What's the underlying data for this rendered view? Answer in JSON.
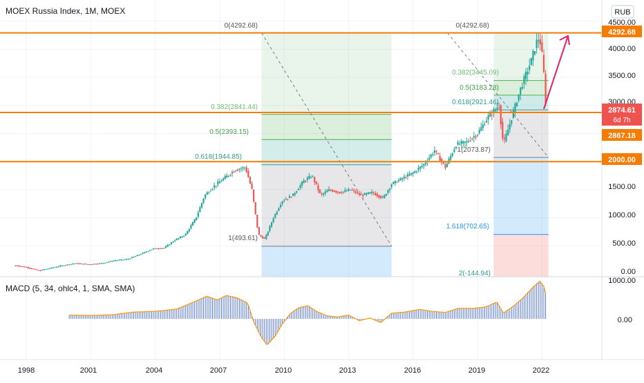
{
  "header": {
    "symbol_title": "MOEX Russia Index, 1M, MOEX",
    "currency": "RUB"
  },
  "colors": {
    "up": "#26a69a",
    "down": "#ef5350",
    "level": "#f57c00",
    "fib_green": "#4caf50",
    "fib_blue": "#2196f3",
    "macd_bar": "#5b7bd5",
    "arrow": "#e91e63",
    "label_dark": "#555555"
  },
  "price_axis": {
    "ticks": [
      "4500.00",
      "4000.00",
      "3500.00",
      "3000.00",
      "1500.00",
      "1000.00",
      "500.00",
      "0.00"
    ],
    "badges": {
      "top_level": "4292.68",
      "current": "2874.61",
      "countdown": "6d 7h",
      "low_of_bar": "2867.18",
      "support": "2000.00"
    }
  },
  "time_axis": {
    "ticks": [
      "1998",
      "2001",
      "2004",
      "2007",
      "2010",
      "2013",
      "2016",
      "2019",
      "2022"
    ]
  },
  "fib_left": {
    "labels": {
      "top": "0(4292.68)",
      "f0382": "0.382(2841.44)",
      "f05": "0.5(2393.15)",
      "f0618": "0.618(1944.85)",
      "bottom": "1(493.61)"
    }
  },
  "fib_right": {
    "labels": {
      "top": "0(4292.68)",
      "f0382": "0.382(3445.09)",
      "f05": "0.5(3183.28)",
      "f0618": "0.618(2921.46)",
      "bottom": "1(2073.87)",
      "f1618": "1.618(702.65)",
      "f2": "2(-144.94)"
    }
  },
  "macd": {
    "title": "MACD (5, 34, ohlc4, 1, SMA, SMA)",
    "ticks": [
      "1000.00",
      "0.00"
    ]
  },
  "chart_data": {
    "type": "candlestick",
    "title": "MOEX Russia Index, 1M, MOEX",
    "ylim": [
      0,
      4600
    ],
    "log_scale": false,
    "grid": true,
    "x_range": [
      1997.3,
      2025.4
    ],
    "series": [
      {
        "name": "MOEX Russia Index",
        "points": [
          [
            1997.5,
            150
          ],
          [
            1998.0,
            120
          ],
          [
            1998.6,
            60
          ],
          [
            1999.2,
            110
          ],
          [
            1999.8,
            160
          ],
          [
            2000.3,
            190
          ],
          [
            2000.9,
            170
          ],
          [
            2001.5,
            190
          ],
          [
            2002.1,
            240
          ],
          [
            2002.7,
            260
          ],
          [
            2003.3,
            350
          ],
          [
            2003.9,
            450
          ],
          [
            2004.4,
            460
          ],
          [
            2004.9,
            600
          ],
          [
            2005.4,
            700
          ],
          [
            2005.9,
            1000
          ],
          [
            2006.3,
            1400
          ],
          [
            2006.7,
            1550
          ],
          [
            2007.2,
            1700
          ],
          [
            2007.7,
            1850
          ],
          [
            2008.2,
            1900
          ],
          [
            2008.5,
            1500
          ],
          [
            2008.8,
            700
          ],
          [
            2009.1,
            620
          ],
          [
            2009.5,
            1000
          ],
          [
            2009.9,
            1300
          ],
          [
            2010.4,
            1400
          ],
          [
            2010.9,
            1650
          ],
          [
            2011.3,
            1750
          ],
          [
            2011.7,
            1400
          ],
          [
            2012.1,
            1500
          ],
          [
            2012.6,
            1450
          ],
          [
            2013.1,
            1500
          ],
          [
            2013.6,
            1400
          ],
          [
            2014.1,
            1450
          ],
          [
            2014.6,
            1350
          ],
          [
            2015.0,
            1600
          ],
          [
            2015.5,
            1700
          ],
          [
            2016.0,
            1800
          ],
          [
            2016.5,
            1950
          ],
          [
            2017.0,
            2200
          ],
          [
            2017.5,
            1900
          ],
          [
            2018.0,
            2300
          ],
          [
            2018.5,
            2350
          ],
          [
            2019.0,
            2500
          ],
          [
            2019.5,
            2800
          ],
          [
            2020.0,
            3000
          ],
          [
            2020.2,
            2300
          ],
          [
            2020.6,
            2800
          ],
          [
            2021.0,
            3300
          ],
          [
            2021.5,
            3800
          ],
          [
            2021.8,
            4200
          ],
          [
            2021.95,
            4100
          ],
          [
            2022.1,
            3500
          ],
          [
            2022.2,
            2874.61
          ]
        ]
      }
    ],
    "horizontal_levels": [
      4292.68,
      2874.61,
      2000.0
    ],
    "fib_left": {
      "from": 4292.68,
      "to": 493.61,
      "levels": [
        {
          "ratio": 0.382,
          "value": 2841.44
        },
        {
          "ratio": 0.5,
          "value": 2393.15
        },
        {
          "ratio": 0.618,
          "value": 1944.85
        }
      ]
    },
    "fib_right": {
      "from": 4292.68,
      "to": 2073.87,
      "levels": [
        {
          "ratio": 0.382,
          "value": 3445.09
        },
        {
          "ratio": 0.5,
          "value": 3183.28
        },
        {
          "ratio": 0.618,
          "value": 2921.46
        },
        {
          "ratio": 1.618,
          "value": 702.65
        },
        {
          "ratio": 2,
          "value": -144.94
        }
      ]
    },
    "macd": {
      "params": "5, 34, ohlc4, 1, SMA, SMA",
      "ylim": [
        -800,
        1150
      ],
      "points": [
        [
          2000.0,
          100
        ],
        [
          2001.0,
          90
        ],
        [
          2002.0,
          110
        ],
        [
          2003.0,
          180
        ],
        [
          2004.0,
          200
        ],
        [
          2005.0,
          260
        ],
        [
          2005.8,
          450
        ],
        [
          2006.4,
          600
        ],
        [
          2006.9,
          500
        ],
        [
          2007.3,
          620
        ],
        [
          2007.8,
          560
        ],
        [
          2008.3,
          420
        ],
        [
          2008.6,
          -100
        ],
        [
          2008.9,
          -450
        ],
        [
          2009.2,
          -700
        ],
        [
          2009.6,
          -450
        ],
        [
          2009.9,
          -150
        ],
        [
          2010.3,
          150
        ],
        [
          2010.7,
          300
        ],
        [
          2011.1,
          350
        ],
        [
          2011.5,
          200
        ],
        [
          2012.0,
          80
        ],
        [
          2012.5,
          50
        ],
        [
          2013.0,
          100
        ],
        [
          2013.5,
          -50
        ],
        [
          2014.0,
          20
        ],
        [
          2014.5,
          -100
        ],
        [
          2015.0,
          150
        ],
        [
          2015.6,
          180
        ],
        [
          2016.3,
          250
        ],
        [
          2016.9,
          200
        ],
        [
          2017.5,
          170
        ],
        [
          2018.1,
          280
        ],
        [
          2018.8,
          280
        ],
        [
          2019.4,
          320
        ],
        [
          2019.9,
          450
        ],
        [
          2020.2,
          150
        ],
        [
          2020.7,
          350
        ],
        [
          2021.1,
          550
        ],
        [
          2021.6,
          850
        ],
        [
          2021.9,
          1000
        ],
        [
          2022.1,
          850
        ],
        [
          2022.2,
          600
        ]
      ]
    }
  }
}
